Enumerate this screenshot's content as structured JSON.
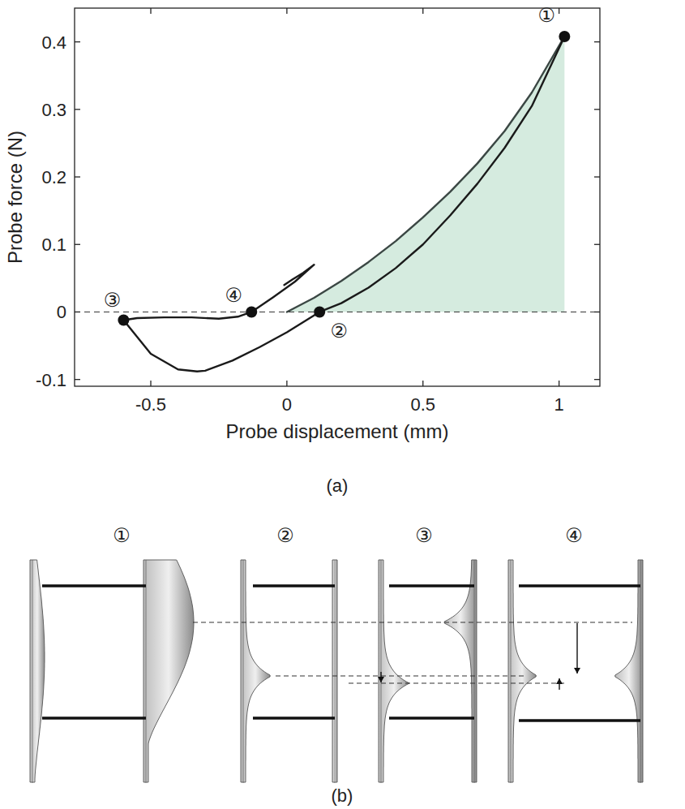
{
  "chart_data": {
    "type": "line",
    "caption": "(a)",
    "x_label": "Probe displacement (mm)",
    "y_label": "Probe force (N)",
    "xlim": [
      -0.78,
      1.15
    ],
    "ylim": [
      -0.11,
      0.45
    ],
    "xticks": [
      -0.5,
      0,
      0.5,
      1
    ],
    "yticks": [
      -0.1,
      0,
      0.1,
      0.2,
      0.3,
      0.4
    ],
    "series": [
      {
        "type": "area",
        "color": "#d5ebdf",
        "x": [
          0,
          0.1,
          0.2,
          0.3,
          0.4,
          0.5,
          0.6,
          0.7,
          0.8,
          0.9,
          1.02
        ],
        "values": [
          0,
          0.021,
          0.046,
          0.074,
          0.105,
          0.14,
          0.178,
          0.22,
          0.268,
          0.325,
          0.408
        ]
      },
      {
        "type": "line",
        "color": "#3b4744",
        "x": [
          0,
          0.1,
          0.2,
          0.3,
          0.4,
          0.5,
          0.6,
          0.7,
          0.8,
          0.9,
          1.02
        ],
        "values": [
          0,
          0.021,
          0.046,
          0.074,
          0.105,
          0.14,
          0.178,
          0.22,
          0.268,
          0.325,
          0.408
        ]
      },
      {
        "type": "line",
        "color": "#1a1a1a",
        "x": [
          1.02,
          0.9,
          0.8,
          0.7,
          0.6,
          0.5,
          0.4,
          0.3,
          0.2,
          0.12,
          0.0,
          -0.1,
          -0.2,
          -0.3,
          -0.33,
          -0.4,
          -0.5,
          -0.6,
          -0.55,
          -0.45,
          -0.35,
          -0.25,
          -0.18,
          -0.13,
          -0.05,
          0.03,
          0.1,
          0.06,
          0.02,
          -0.01
        ],
        "values": [
          0.408,
          0.305,
          0.243,
          0.19,
          0.143,
          0.1,
          0.065,
          0.036,
          0.013,
          0,
          -0.03,
          -0.052,
          -0.072,
          -0.087,
          -0.088,
          -0.085,
          -0.062,
          -0.012,
          -0.009,
          -0.008,
          -0.008,
          -0.01,
          -0.007,
          0,
          0.022,
          0.045,
          0.07,
          0.058,
          0.048,
          0.04
        ]
      }
    ],
    "annotations": [
      {
        "label": "①",
        "x": 1.02,
        "y": 0.408
      },
      {
        "label": "②",
        "x": 0.12,
        "y": 0
      },
      {
        "label": "③",
        "x": -0.6,
        "y": -0.012
      },
      {
        "label": "④",
        "x": -0.13,
        "y": 0
      }
    ]
  },
  "diagram": {
    "caption": "(b)",
    "states": [
      {
        "label": "①"
      },
      {
        "label": "②"
      },
      {
        "label": "③"
      },
      {
        "label": "④"
      }
    ]
  }
}
